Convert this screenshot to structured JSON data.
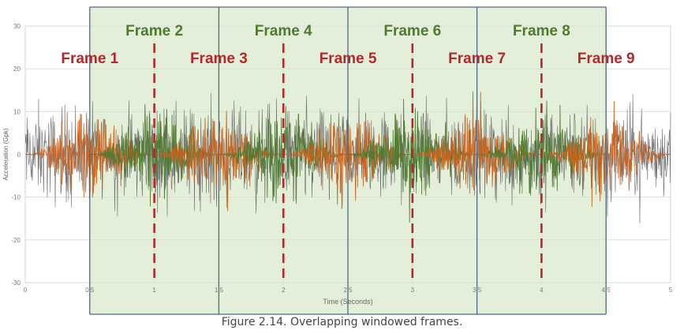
{
  "chart_data": {
    "type": "line",
    "xlabel": "Time (Seconds)",
    "ylabel": "Acceleration (Gpk)",
    "xlim": [
      0,
      5
    ],
    "ylim": [
      -30,
      30
    ],
    "x_ticks": [
      "0",
      "0.5",
      "1",
      "1.5",
      "2",
      "2.5",
      "3",
      "3.5",
      "4",
      "4.5",
      "5"
    ],
    "y_ticks": [
      "30",
      "20",
      "10",
      "0",
      "-10",
      "-20",
      "-30"
    ],
    "y_tick_values": [
      30,
      20,
      10,
      0,
      -10,
      -20,
      -30
    ],
    "grid": true,
    "signal": {
      "duration": 5,
      "raw_envelope_peak": 20,
      "raw_color": "#555555",
      "odd_frame_color": "#c8621e",
      "even_frame_color": "#4e7a2f"
    },
    "frames": [
      {
        "label": "Frame 1",
        "start": 0.0,
        "end": 1.0
      },
      {
        "label": "Frame 2",
        "start": 0.5,
        "end": 1.5
      },
      {
        "label": "Frame 3",
        "start": 1.0,
        "end": 2.0
      },
      {
        "label": "Frame 4",
        "start": 1.5,
        "end": 2.5
      },
      {
        "label": "Frame 5",
        "start": 2.0,
        "end": 3.0
      },
      {
        "label": "Frame 6",
        "start": 2.5,
        "end": 3.5
      },
      {
        "label": "Frame 7",
        "start": 3.0,
        "end": 4.0
      },
      {
        "label": "Frame 8",
        "start": 3.5,
        "end": 4.5
      },
      {
        "label": "Frame 9",
        "start": 4.0,
        "end": 5.0
      }
    ],
    "shaded_region": [
      0.5,
      4.5
    ],
    "shade_color": "#e4efd9",
    "frame_border_color": "#4a6a8a",
    "dashed_markers": [
      1,
      2,
      3,
      4
    ],
    "dashed_color": "#b3282d",
    "odd_label_color": "#b3282d",
    "even_label_color": "#4e7a2f"
  },
  "caption": "Figure 2.14. Overlapping windowed frames."
}
